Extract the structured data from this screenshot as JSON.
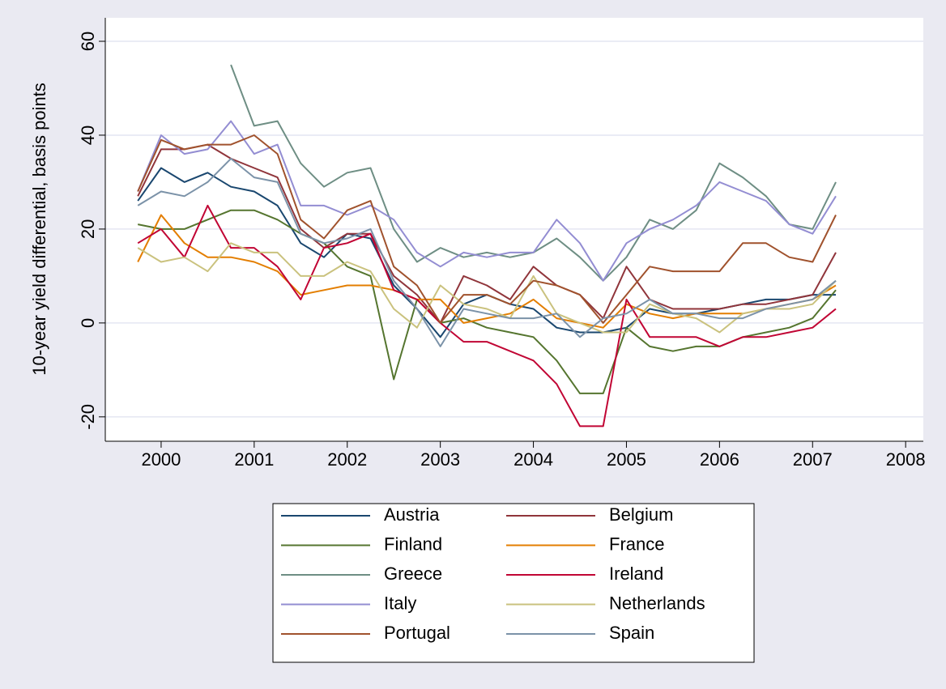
{
  "chart_data": {
    "type": "line",
    "y_label": "10-year yield differential, basis points",
    "x": [
      1999.75,
      2000,
      2000.25,
      2000.5,
      2000.75,
      2001,
      2001.25,
      2001.5,
      2001.75,
      2002,
      2002.25,
      2002.5,
      2002.75,
      2003,
      2003.25,
      2003.5,
      2003.75,
      2004,
      2004.25,
      2004.5,
      2004.75,
      2005,
      2005.25,
      2005.5,
      2005.75,
      2006,
      2006.25,
      2006.5,
      2006.75,
      2007,
      2007.25
    ],
    "xlim": [
      1999.4,
      2008.19
    ],
    "xticks": [
      2000,
      2001,
      2002,
      2003,
      2004,
      2005,
      2006,
      2007,
      2008
    ],
    "ylim": [
      -25.2,
      65
    ],
    "yticks": [
      -20,
      0,
      20,
      40,
      60
    ],
    "grid": true,
    "legend_position": "bottom",
    "series": [
      {
        "name": "Austria",
        "color": "#1a476f",
        "values": [
          26,
          33,
          30,
          32,
          29,
          28,
          25,
          17,
          14,
          19,
          18,
          8,
          3,
          -3,
          4,
          6,
          4,
          3,
          -1,
          -2,
          -2,
          -1,
          3,
          2,
          2,
          3,
          4,
          5,
          5,
          6,
          6
        ]
      },
      {
        "name": "Belgium",
        "color": "#90353b",
        "values": [
          27,
          37,
          37,
          38,
          35,
          33,
          31,
          20,
          16,
          19,
          19,
          10,
          6,
          0,
          10,
          8,
          5,
          12,
          8,
          6,
          1,
          12,
          5,
          3,
          3,
          3,
          4,
          4,
          5,
          6,
          15
        ]
      },
      {
        "name": "Finland",
        "color": "#55752f",
        "values": [
          21,
          20,
          20,
          22,
          24,
          24,
          22,
          19,
          17,
          12,
          10,
          -12,
          5,
          0,
          1,
          -1,
          -2,
          -3,
          -8,
          -15,
          -15,
          -1,
          -5,
          -6,
          -5,
          -5,
          -3,
          -2,
          -1,
          1,
          7
        ]
      },
      {
        "name": "France",
        "color": "#e37e00",
        "values": [
          13,
          23,
          17,
          14,
          14,
          13,
          11,
          6,
          7,
          8,
          8,
          7,
          5,
          5,
          0,
          1,
          2,
          5,
          1,
          0,
          -1,
          4,
          2,
          1,
          2,
          2,
          2,
          3,
          4,
          5,
          8
        ]
      },
      {
        "name": "Greece",
        "color": "#6e8e84",
        "values": [
          null,
          null,
          null,
          null,
          55,
          42,
          43,
          34,
          29,
          32,
          33,
          20,
          13,
          16,
          14,
          15,
          14,
          15,
          18,
          14,
          9,
          14,
          22,
          20,
          24,
          34,
          31,
          27,
          21,
          20,
          30
        ]
      },
      {
        "name": "Ireland",
        "color": "#c10534",
        "values": [
          17,
          20,
          14,
          25,
          16,
          16,
          12,
          5,
          16,
          17,
          19,
          7,
          5,
          0,
          -4,
          -4,
          -6,
          -8,
          -13,
          -22,
          -22,
          5,
          -3,
          -3,
          -3,
          -5,
          -3,
          -3,
          -2,
          -1,
          3
        ]
      },
      {
        "name": "Italy",
        "color": "#938dd2",
        "values": [
          28,
          40,
          36,
          37,
          43,
          36,
          38,
          25,
          25,
          23,
          25,
          22,
          15,
          12,
          15,
          14,
          15,
          15,
          22,
          17,
          9,
          17,
          20,
          22,
          25,
          30,
          28,
          26,
          21,
          19,
          27
        ]
      },
      {
        "name": "Netherlands",
        "color": "#cac27e",
        "values": [
          16,
          13,
          14,
          11,
          17,
          15,
          15,
          10,
          10,
          13,
          11,
          3,
          -1,
          8,
          4,
          3,
          1,
          10,
          2,
          0,
          -2,
          -2,
          4,
          2,
          1,
          -2,
          2,
          3,
          3,
          4,
          9
        ]
      },
      {
        "name": "Portugal",
        "color": "#a0522d",
        "values": [
          28,
          39,
          37,
          38,
          38,
          40,
          36,
          22,
          18,
          24,
          26,
          12,
          8,
          0,
          6,
          6,
          4,
          9,
          8,
          6,
          0,
          6,
          12,
          11,
          11,
          11,
          17,
          17,
          14,
          13,
          23
        ]
      },
      {
        "name": "Spain",
        "color": "#7b92a8",
        "values": [
          25,
          28,
          27,
          30,
          35,
          31,
          30,
          19,
          17,
          18,
          20,
          9,
          3,
          -5,
          3,
          2,
          1,
          1,
          2,
          -3,
          1,
          2,
          5,
          2,
          2,
          1,
          1,
          3,
          4,
          5,
          9
        ]
      }
    ]
  }
}
